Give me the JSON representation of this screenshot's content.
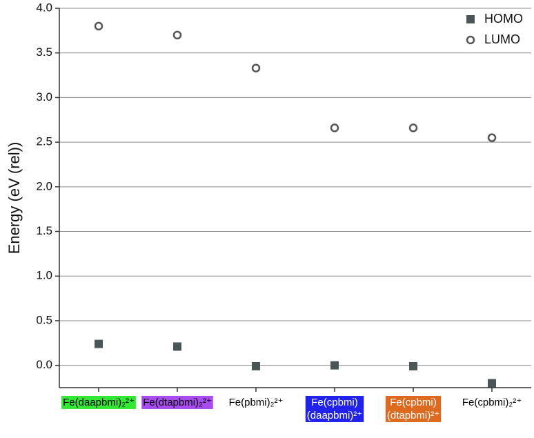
{
  "chart_data": {
    "type": "scatter",
    "y_label": "Energy (eV (rel))",
    "categories": [
      [
        "Fe(daapbmi)₂²⁺"
      ],
      [
        "Fe(dtapbmi)₂²⁺"
      ],
      [
        "Fe(pbmi)₂²⁺"
      ],
      [
        "Fe(cpbmi)",
        "(daapbmi)²⁺"
      ],
      [
        "Fe(cpbmi)",
        "(dtapbmi)²⁺"
      ],
      [
        "Fe(cpbmi)₂²⁺"
      ]
    ],
    "label_colors": [
      "#33e833",
      "#a84cf0",
      "#ffffff",
      "#2222ee",
      "#dd6a1e",
      "#ffffff"
    ],
    "label_text_colors": [
      "#000000",
      "#000000",
      "#000000",
      "#ffffff",
      "#ffffff",
      "#000000"
    ],
    "series": [
      {
        "name": "HOMO",
        "color": "#4a5558",
        "marker": "square",
        "values": [
          0.24,
          0.21,
          -0.01,
          0.0,
          -0.01,
          -0.2
        ]
      },
      {
        "name": "LUMO",
        "color": "#555555",
        "marker": "circle",
        "values": [
          3.8,
          3.7,
          3.33,
          2.66,
          2.66,
          2.55
        ]
      }
    ],
    "ylim": [
      -0.25,
      4.0
    ],
    "yticks": [
      {
        "value": 0,
        "label": "0.0"
      },
      0.5,
      {
        "value": 1,
        "label": "1.0"
      },
      1.5,
      {
        "value": 2,
        "label": "2.0"
      },
      2.5,
      {
        "value": 3,
        "label": "3.0"
      },
      3.5,
      {
        "value": 4,
        "label": "4.0"
      }
    ],
    "grid": true,
    "legend": "upper right"
  }
}
